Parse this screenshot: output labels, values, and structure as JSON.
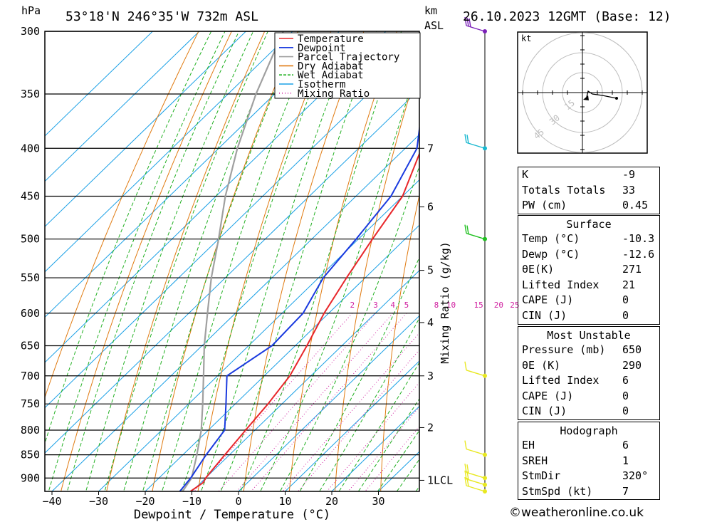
{
  "header": {
    "location": "53°18'N  246°35'W  732m  ASL",
    "datetime": "26.10.2023  12GMT  (Base: 12)",
    "hpa_label": "hPa",
    "km_label": "km",
    "asl_label": "ASL"
  },
  "chart_data": {
    "type": "skew-t",
    "xlabel": "Dewpoint / Temperature (°C)",
    "ylabel_right": "Mixing Ratio (g/kg)",
    "x_ticks": [
      -40,
      -30,
      -20,
      -10,
      0,
      10,
      20,
      30
    ],
    "x_tick_labels": [
      "−40",
      "−30",
      "−20",
      "−10",
      "0",
      "10",
      "20",
      "30"
    ],
    "pressure_levels": [
      300,
      350,
      400,
      450,
      500,
      550,
      600,
      650,
      700,
      750,
      800,
      850,
      900
    ],
    "p_range": [
      300,
      930
    ],
    "km_ticks": [
      {
        "label": "7",
        "p": 400
      },
      {
        "label": "6",
        "p": 462
      },
      {
        "label": "5",
        "p": 540
      },
      {
        "label": "4",
        "p": 614
      },
      {
        "label": "3",
        "p": 700
      },
      {
        "label": "2",
        "p": 795
      },
      {
        "label": "1LCL",
        "p": 905
      }
    ],
    "mixing_ratio_values": [
      "2",
      "3",
      "4",
      "5",
      "8",
      "10",
      "15",
      "20",
      "25"
    ],
    "legend": [
      {
        "name": "Temperature",
        "color": "#e8262a"
      },
      {
        "name": "Dewpoint",
        "color": "#1a3adf"
      },
      {
        "name": "Parcel Trajectory",
        "color": "#a0a0a0"
      },
      {
        "name": "Dry Adiabat",
        "color": "#e07a10"
      },
      {
        "name": "Wet Adiabat",
        "color": "#22b022"
      },
      {
        "name": "Isotherm",
        "color": "#1aa0e6"
      },
      {
        "name": "Mixing Ratio",
        "color": "#d020a0"
      }
    ],
    "temperature": [
      [
        930,
        -10.3
      ],
      [
        910,
        -9.5
      ],
      [
        900,
        -10.0
      ],
      [
        850,
        -11.0
      ],
      [
        800,
        -12.0
      ],
      [
        750,
        -13.0
      ],
      [
        700,
        -14.5
      ],
      [
        650,
        -17.5
      ],
      [
        600,
        -21.0
      ],
      [
        550,
        -24.0
      ],
      [
        500,
        -27.0
      ],
      [
        450,
        -30.0
      ],
      [
        400,
        -36.5
      ],
      [
        350,
        -44.0
      ],
      [
        330,
        -47.0
      ],
      [
        300,
        -50.0
      ]
    ],
    "dewpoint": [
      [
        930,
        -12.6
      ],
      [
        900,
        -13.2
      ],
      [
        850,
        -15.0
      ],
      [
        800,
        -16.5
      ],
      [
        750,
        -22.0
      ],
      [
        700,
        -28.0
      ],
      [
        650,
        -25.0
      ],
      [
        600,
        -25.5
      ],
      [
        550,
        -29.0
      ],
      [
        500,
        -30.5
      ],
      [
        450,
        -32.5
      ],
      [
        400,
        -37.5
      ],
      [
        350,
        -48.0
      ],
      [
        320,
        -54.0
      ],
      [
        300,
        -58.0
      ]
    ],
    "parcel": [
      [
        930,
        -12.0
      ],
      [
        900,
        -13.0
      ],
      [
        850,
        -17.0
      ],
      [
        800,
        -21.5
      ],
      [
        750,
        -27.0
      ],
      [
        700,
        -33.0
      ],
      [
        650,
        -39.5
      ],
      [
        600,
        -46.0
      ],
      [
        550,
        -53.0
      ],
      [
        500,
        -60.0
      ],
      [
        450,
        -68.0
      ],
      [
        400,
        -76.0
      ],
      [
        350,
        -84.0
      ],
      [
        300,
        -92.0
      ]
    ],
    "wind_colors": [
      "#7b20b8",
      "#18b8d0",
      "#20c020",
      "#e8e820"
    ]
  },
  "hodograph": {
    "unit": "kt",
    "rings": [
      "15",
      "30",
      "45"
    ]
  },
  "indices": {
    "top": [
      {
        "label": "K",
        "value": "-9"
      },
      {
        "label": "Totals Totals",
        "value": "33"
      },
      {
        "label": "PW (cm)",
        "value": "0.45"
      }
    ],
    "surface": {
      "title": "Surface",
      "rows": [
        {
          "label": "Temp (°C)",
          "value": "-10.3"
        },
        {
          "label": "Dewp (°C)",
          "value": "-12.6"
        },
        {
          "label": "θE(K)",
          "value": "271"
        },
        {
          "label": "Lifted Index",
          "value": "21"
        },
        {
          "label": "CAPE (J)",
          "value": "0"
        },
        {
          "label": "CIN (J)",
          "value": "0"
        }
      ]
    },
    "most_unstable": {
      "title": "Most Unstable",
      "rows": [
        {
          "label": "Pressure (mb)",
          "value": "650"
        },
        {
          "label": "θE (K)",
          "value": "290"
        },
        {
          "label": "Lifted Index",
          "value": "6"
        },
        {
          "label": "CAPE (J)",
          "value": "0"
        },
        {
          "label": "CIN (J)",
          "value": "0"
        }
      ]
    },
    "hodograph_box": {
      "title": "Hodograph",
      "rows": [
        {
          "label": "EH",
          "value": "6"
        },
        {
          "label": "SREH",
          "value": "1"
        },
        {
          "label": "StmDir",
          "value": "320°"
        },
        {
          "label": "StmSpd (kt)",
          "value": "7"
        }
      ]
    }
  },
  "footer": "©weatheronline.co.uk"
}
